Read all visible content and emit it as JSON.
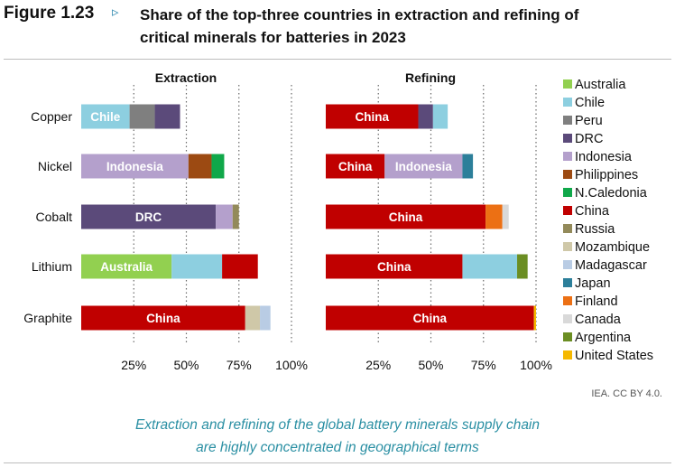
{
  "header": {
    "figure_label": "Figure 1.23",
    "arrow": "▹",
    "title_line1": "Share of the top-three countries in extraction and refining of",
    "title_line2": "critical minerals for batteries in 2023"
  },
  "source": "IEA. CC BY 4.0.",
  "caption": {
    "line1": "Extraction and refining of the global battery minerals supply chain",
    "line2": "are highly concentrated in geographical terms"
  },
  "legend": [
    {
      "name": "Australia",
      "color": "#92d050"
    },
    {
      "name": "Chile",
      "color": "#8dcfe0"
    },
    {
      "name": "Peru",
      "color": "#7f7f7f"
    },
    {
      "name": "DRC",
      "color": "#5b4a7a"
    },
    {
      "name": "Indonesia",
      "color": "#b4a0cc"
    },
    {
      "name": "Philippines",
      "color": "#9c4a12"
    },
    {
      "name": "N.Caledonia",
      "color": "#10a84a"
    },
    {
      "name": "China",
      "color": "#c00000"
    },
    {
      "name": "Russia",
      "color": "#938a5a"
    },
    {
      "name": "Mozambique",
      "color": "#cfc8a8"
    },
    {
      "name": "Madagascar",
      "color": "#b9cce4"
    },
    {
      "name": "Japan",
      "color": "#2c7f9a"
    },
    {
      "name": "Finland",
      "color": "#ec7014"
    },
    {
      "name": "Canada",
      "color": "#d9d9d9"
    },
    {
      "name": "Argentina",
      "color": "#6b8e23"
    },
    {
      "name": "United States",
      "color": "#f5b800"
    }
  ],
  "chart_data": [
    {
      "type": "bar",
      "orientation": "horizontal",
      "stacked": true,
      "title": "Extraction",
      "categories": [
        "Copper",
        "Nickel",
        "Cobalt",
        "Lithium",
        "Graphite"
      ],
      "x_ticks": [
        "25%",
        "50%",
        "75%",
        "100%"
      ],
      "xlim": [
        0,
        100
      ],
      "gridlines": "vertical dotted",
      "rows": [
        {
          "category": "Copper",
          "segments": [
            {
              "country": "Chile",
              "value": 23,
              "label": "Chile"
            },
            {
              "country": "Peru",
              "value": 12
            },
            {
              "country": "DRC",
              "value": 12
            }
          ]
        },
        {
          "category": "Nickel",
          "segments": [
            {
              "country": "Indonesia",
              "value": 51,
              "label": "Indonesia"
            },
            {
              "country": "Philippines",
              "value": 11
            },
            {
              "country": "N.Caledonia",
              "value": 6
            }
          ]
        },
        {
          "category": "Cobalt",
          "segments": [
            {
              "country": "DRC",
              "value": 64,
              "label": "DRC"
            },
            {
              "country": "Indonesia",
              "value": 8
            },
            {
              "country": "Russia",
              "value": 3
            }
          ]
        },
        {
          "category": "Lithium",
          "segments": [
            {
              "country": "Australia",
              "value": 43,
              "label": "Australia"
            },
            {
              "country": "Chile",
              "value": 24
            },
            {
              "country": "China",
              "value": 17
            }
          ]
        },
        {
          "category": "Graphite",
          "segments": [
            {
              "country": "China",
              "value": 78,
              "label": "China"
            },
            {
              "country": "Mozambique",
              "value": 7
            },
            {
              "country": "Madagascar",
              "value": 5
            }
          ]
        }
      ]
    },
    {
      "type": "bar",
      "orientation": "horizontal",
      "stacked": true,
      "title": "Refining",
      "categories": [
        "Copper",
        "Nickel",
        "Cobalt",
        "Lithium",
        "Graphite"
      ],
      "x_ticks": [
        "25%",
        "50%",
        "75%",
        "100%"
      ],
      "xlim": [
        0,
        100
      ],
      "gridlines": "vertical dotted",
      "rows": [
        {
          "category": "Copper",
          "segments": [
            {
              "country": "China",
              "value": 44,
              "label": "China"
            },
            {
              "country": "DRC",
              "value": 7
            },
            {
              "country": "Chile",
              "value": 7
            }
          ]
        },
        {
          "category": "Nickel",
          "segments": [
            {
              "country": "China",
              "value": 28,
              "label": "China"
            },
            {
              "country": "Indonesia",
              "value": 37,
              "label": "Indonesia"
            },
            {
              "country": "Japan",
              "value": 5
            }
          ]
        },
        {
          "category": "Cobalt",
          "segments": [
            {
              "country": "China",
              "value": 76,
              "label": "China"
            },
            {
              "country": "Finland",
              "value": 8
            },
            {
              "country": "Canada",
              "value": 3
            }
          ]
        },
        {
          "category": "Lithium",
          "segments": [
            {
              "country": "China",
              "value": 65,
              "label": "China"
            },
            {
              "country": "Chile",
              "value": 26
            },
            {
              "country": "Argentina",
              "value": 5
            }
          ]
        },
        {
          "category": "Graphite",
          "segments": [
            {
              "country": "China",
              "value": 99,
              "label": "China"
            },
            {
              "country": "United States",
              "value": 1
            }
          ]
        }
      ]
    }
  ]
}
